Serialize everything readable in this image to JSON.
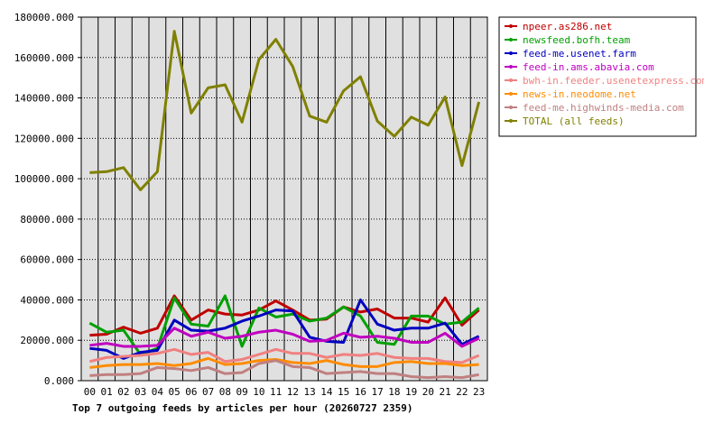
{
  "chart_data": {
    "type": "line",
    "title": "Top 7 outgoing feeds by articles per hour (20260727 2359)",
    "xlabel": "",
    "ylabel": "",
    "x": [
      "00",
      "01",
      "02",
      "03",
      "04",
      "05",
      "06",
      "07",
      "08",
      "09",
      "10",
      "11",
      "12",
      "13",
      "14",
      "15",
      "16",
      "17",
      "18",
      "19",
      "20",
      "21",
      "22",
      "23"
    ],
    "ylim": [
      0,
      180000
    ],
    "yticks": [
      "0.000",
      "20000.000",
      "40000.000",
      "60000.000",
      "80000.000",
      "100000.000",
      "120000.000",
      "140000.000",
      "160000.000",
      "180000.000"
    ],
    "grid": true,
    "legend_position": "top-right",
    "series": [
      {
        "name": "npeer.as286.net",
        "color": "#c00000",
        "values": [
          22500,
          23000,
          26500,
          23500,
          26000,
          42000,
          30000,
          35000,
          33000,
          32500,
          35000,
          39500,
          35000,
          30000,
          30500,
          36500,
          34000,
          35500,
          31000,
          31000,
          29000,
          41000,
          27500,
          35000
        ]
      },
      {
        "name": "newsfeed.bofh.team",
        "color": "#00a000",
        "values": [
          28500,
          24000,
          25000,
          13000,
          16000,
          41000,
          28000,
          27000,
          42000,
          17000,
          36000,
          31500,
          33000,
          29500,
          31000,
          36500,
          32000,
          19000,
          18000,
          32000,
          32000,
          28000,
          29000,
          36000
        ]
      },
      {
        "name": "feed-me.usenet.farm",
        "color": "#0000c0",
        "values": [
          16000,
          15000,
          11000,
          14000,
          15000,
          30000,
          25000,
          24500,
          26000,
          29500,
          32000,
          35000,
          34500,
          21500,
          19500,
          19000,
          40000,
          28000,
          25000,
          26000,
          26000,
          28500,
          18000,
          22000
        ]
      },
      {
        "name": "feed-in.ams.abavia.com",
        "color": "#c000c0",
        "values": [
          17500,
          18500,
          17000,
          17000,
          17500,
          26000,
          22000,
          24000,
          21000,
          22000,
          24000,
          25000,
          23000,
          19500,
          20000,
          23500,
          21500,
          22000,
          21000,
          19000,
          19000,
          23500,
          17000,
          21000
        ]
      },
      {
        "name": "bwh-in.feeder.usenetexpress.com",
        "color": "#f08080",
        "values": [
          9500,
          11500,
          12000,
          12500,
          13500,
          15500,
          13000,
          14000,
          9500,
          10500,
          13000,
          15500,
          13500,
          13500,
          11500,
          13000,
          12500,
          13500,
          11500,
          11000,
          11000,
          9500,
          9000,
          12500
        ]
      },
      {
        "name": "news-in.neodome.net",
        "color": "#ff8c00",
        "values": [
          6500,
          7500,
          8000,
          8000,
          8500,
          7500,
          8500,
          11000,
          8000,
          8500,
          10000,
          10500,
          9000,
          8500,
          10000,
          8000,
          7000,
          7000,
          9000,
          9500,
          8500,
          8500,
          7500,
          8000
        ]
      },
      {
        "name": "feed-me.highwinds-media.com",
        "color": "#c08080",
        "values": [
          2500,
          3000,
          3000,
          3500,
          6500,
          6000,
          5000,
          6500,
          3500,
          4000,
          8500,
          10000,
          7000,
          6500,
          3500,
          4000,
          4500,
          3500,
          3500,
          2000,
          1500,
          2000,
          1500,
          3000
        ]
      },
      {
        "name": "TOTAL (all feeds)",
        "color": "#808000",
        "values": [
          103000,
          103500,
          105500,
          94500,
          103500,
          173000,
          132500,
          145000,
          146500,
          128000,
          159000,
          169000,
          155500,
          131000,
          128000,
          143500,
          150500,
          128500,
          121000,
          130500,
          126500,
          140500,
          106500,
          138000
        ]
      }
    ]
  }
}
